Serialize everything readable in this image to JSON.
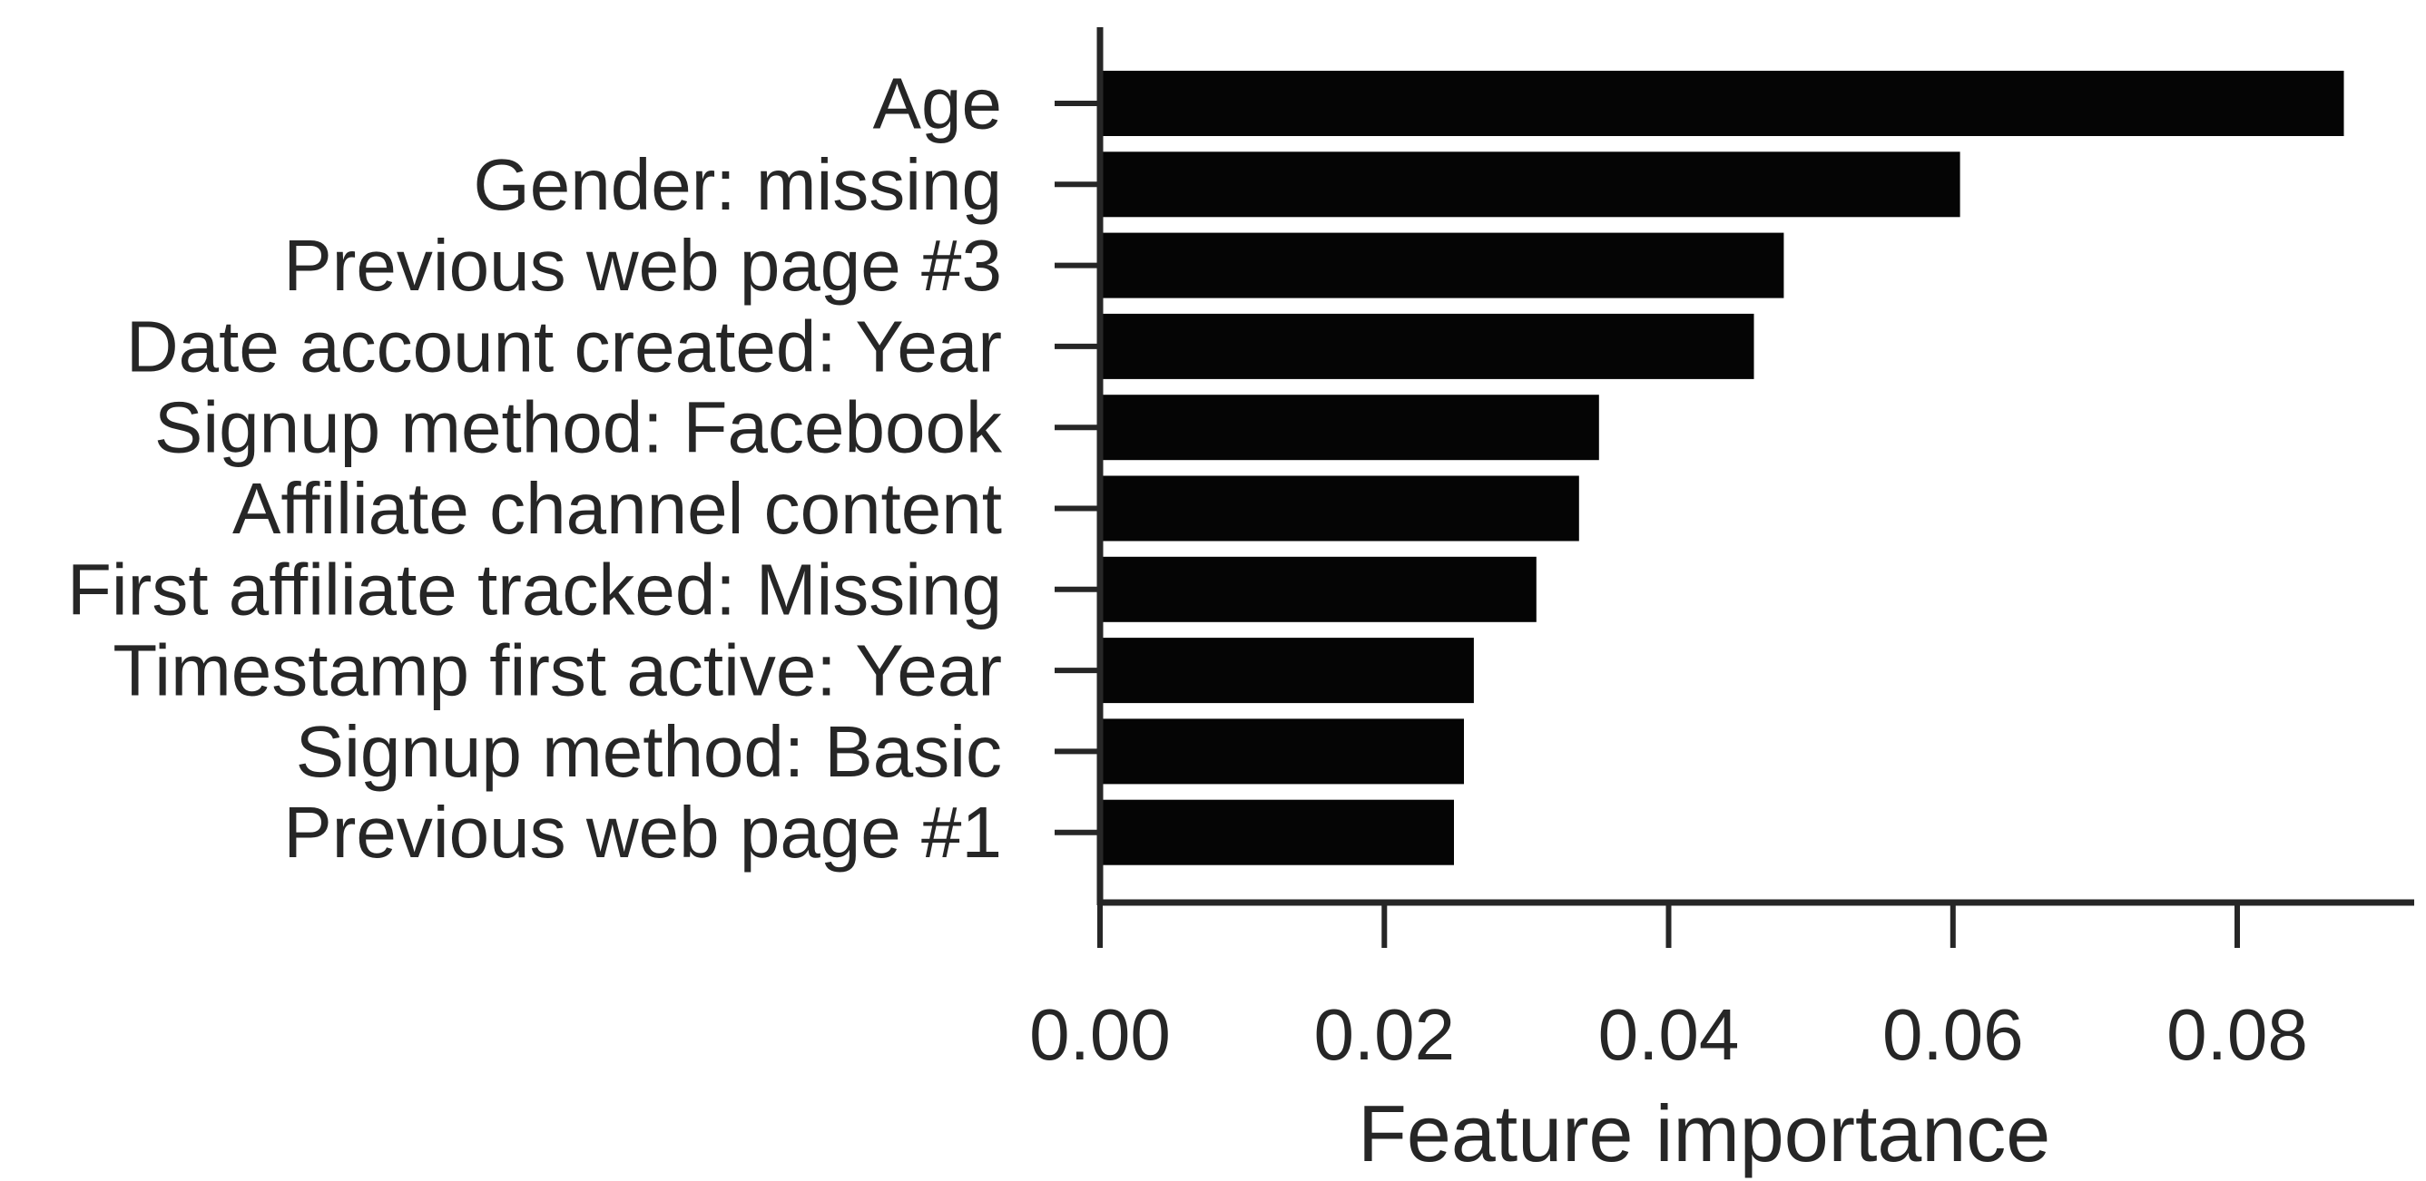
{
  "chart_data": {
    "type": "bar",
    "orientation": "horizontal",
    "categories": [
      "Age",
      "Gender: missing",
      "Previous web page #3",
      "Date account created: Year",
      "Signup method: Facebook",
      "Affiliate channel content",
      "First affiliate tracked: Missing",
      "Timestamp first active: Year",
      "Signup method: Basic",
      "Previous web page #1"
    ],
    "values": [
      0.0875,
      0.0605,
      0.0481,
      0.046,
      0.0351,
      0.0337,
      0.0307,
      0.0263,
      0.0256,
      0.0249
    ],
    "title": "",
    "xlabel": "Feature importance",
    "ylabel": "",
    "xlim": [
      0,
      0.092
    ],
    "xticks": [
      0.0,
      0.02,
      0.04,
      0.06,
      0.08
    ],
    "xtick_labels": [
      "0.00",
      "0.02",
      "0.04",
      "0.06",
      "0.08"
    ],
    "grid": false,
    "colors": {
      "bar": "#050505",
      "axis": "#262626",
      "text": "#262626"
    }
  }
}
